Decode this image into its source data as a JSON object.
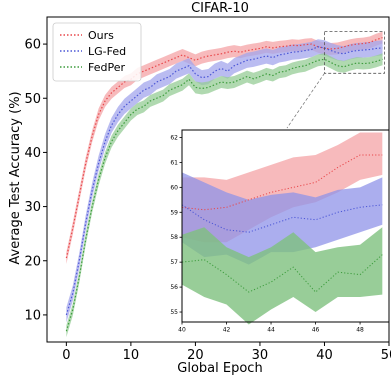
{
  "chart_data": {
    "type": "line",
    "title": "CIFAR-10",
    "xlabel": "Global Epoch",
    "ylabel": "Average Test Accuracy (%)",
    "xlim": [
      -3,
      50
    ],
    "ylim": [
      5,
      65
    ],
    "xticks": [
      0,
      10,
      20,
      30,
      40,
      50
    ],
    "xtick_labels": [
      "0",
      "10",
      "20",
      "30",
      "40",
      "50"
    ],
    "yticks": [
      10,
      20,
      30,
      40,
      50,
      60
    ],
    "ytick_labels": [
      "10",
      "20",
      "30",
      "40",
      "50",
      "60"
    ],
    "grid": false,
    "legend": "top-left",
    "line_style": "dotted",
    "x": [
      0,
      1,
      2,
      3,
      4,
      5,
      6,
      7,
      8,
      9,
      10,
      11,
      12,
      13,
      14,
      15,
      16,
      17,
      18,
      19,
      20,
      21,
      22,
      23,
      24,
      25,
      26,
      27,
      28,
      29,
      30,
      31,
      32,
      33,
      34,
      35,
      36,
      37,
      38,
      39,
      40,
      41,
      42,
      43,
      44,
      45,
      46,
      47,
      48,
      49
    ],
    "series": [
      {
        "name": "Ours",
        "color": "#e8474a",
        "fill": "#f4a3a5",
        "values": [
          20.5,
          26,
          32,
          38,
          43,
          47,
          49.5,
          51,
          52,
          53,
          53.5,
          54.5,
          55,
          55.5,
          56,
          56.5,
          57,
          57.5,
          58,
          57.5,
          57,
          57.5,
          57.8,
          58,
          58.2,
          58.5,
          58.7,
          58.5,
          58.8,
          59,
          59.2,
          59.5,
          59.3,
          59.5,
          59.6,
          59.8,
          59.7,
          59.9,
          60,
          59.5,
          59.2,
          59.1,
          59.2,
          59.5,
          59.8,
          60,
          60.1,
          60.3,
          60.8,
          61.2
        ],
        "band": 1.1
      },
      {
        "name": "LG-Fed",
        "color": "#4b56d6",
        "fill": "#a3a6ec",
        "values": [
          10,
          14,
          20,
          27,
          33,
          38,
          42,
          45,
          47,
          48.5,
          49.5,
          50.5,
          51.5,
          52,
          53,
          53.5,
          54,
          55,
          55.5,
          56,
          54.5,
          53.8,
          54,
          55,
          55.5,
          55,
          56,
          56.5,
          57,
          57.2,
          57.5,
          57.8,
          57.5,
          58,
          58.2,
          58.5,
          58.6,
          58.8,
          59,
          59.5,
          59.3,
          58.8,
          58.4,
          58.2,
          58.6,
          58.8,
          58.9,
          59,
          59.2,
          59.3
        ],
        "band": 1.4
      },
      {
        "name": "FedPer",
        "color": "#3d9c3d",
        "fill": "#95cc95",
        "values": [
          7,
          11,
          17,
          24,
          30,
          35,
          39,
          42,
          44,
          45.5,
          47,
          48,
          48.5,
          49.5,
          50,
          50.5,
          51.5,
          52,
          52.5,
          53.5,
          52,
          51.8,
          52,
          52.5,
          53,
          52.8,
          53,
          53.5,
          54,
          53.6,
          54,
          54.5,
          54.2,
          54.8,
          55,
          55.5,
          55.8,
          56,
          56.5,
          57,
          57.2,
          56.6,
          56,
          55.8,
          56.2,
          56.5,
          56.4,
          56.5,
          56.8,
          57.2
        ],
        "band": 1.1
      }
    ],
    "inset": {
      "xlim": [
        40,
        49.3
      ],
      "ylim": [
        54.6,
        62.3
      ],
      "xticks": [
        40,
        42,
        44,
        46,
        48
      ],
      "xtick_labels": [
        "40",
        "42",
        "44",
        "46",
        "48"
      ],
      "yticks": [
        55,
        56,
        57,
        58,
        59,
        60,
        61,
        62
      ],
      "ytick_labels": [
        "55",
        "56",
        "57",
        "58",
        "59",
        "60",
        "61",
        "62"
      ],
      "x": [
        40,
        41,
        42,
        43,
        44,
        45,
        46,
        47,
        48,
        49
      ],
      "series": [
        {
          "name": "Ours",
          "color": "#e8474a",
          "fill": "#f4a3a5",
          "alpha": 0.75,
          "values": [
            59.2,
            59.1,
            59.2,
            59.5,
            59.8,
            60,
            60.2,
            60.8,
            61.3,
            61.3
          ],
          "lower": [
            58,
            57.8,
            57.8,
            58.3,
            58.8,
            59.2,
            59.4,
            59.8,
            60.3,
            60.5
          ],
          "upper": [
            60.4,
            60.4,
            60.3,
            60.6,
            60.9,
            61.2,
            61.3,
            61.7,
            62.2,
            62.2
          ]
        },
        {
          "name": "LG-Fed",
          "color": "#4b56d6",
          "fill": "#8f93e8",
          "alpha": 0.75,
          "values": [
            59.3,
            58.7,
            58.3,
            58.2,
            58.5,
            58.8,
            58.7,
            59,
            59.2,
            59.3
          ],
          "lower": [
            57.8,
            57.2,
            57.3,
            56.9,
            57.4,
            57.4,
            57.6,
            57.9,
            58.2,
            58.5
          ],
          "upper": [
            60.6,
            60.2,
            59.8,
            59.5,
            59.7,
            59.8,
            59.6,
            59.9,
            60,
            60.4
          ]
        },
        {
          "name": "FedPer",
          "color": "#3d9c3d",
          "fill": "#7ec07e",
          "alpha": 0.8,
          "values": [
            57,
            57.1,
            56.5,
            55.8,
            56.2,
            56.8,
            55.8,
            56.6,
            56.5,
            57.3
          ],
          "lower": [
            56.1,
            55.6,
            55.3,
            54.5,
            55.1,
            55.6,
            55,
            55.6,
            55.6,
            55.7
          ],
          "upper": [
            58.1,
            58.4,
            57.6,
            57.2,
            57.6,
            58.2,
            57.4,
            57.6,
            57.7,
            58.4
          ]
        }
      ]
    }
  }
}
